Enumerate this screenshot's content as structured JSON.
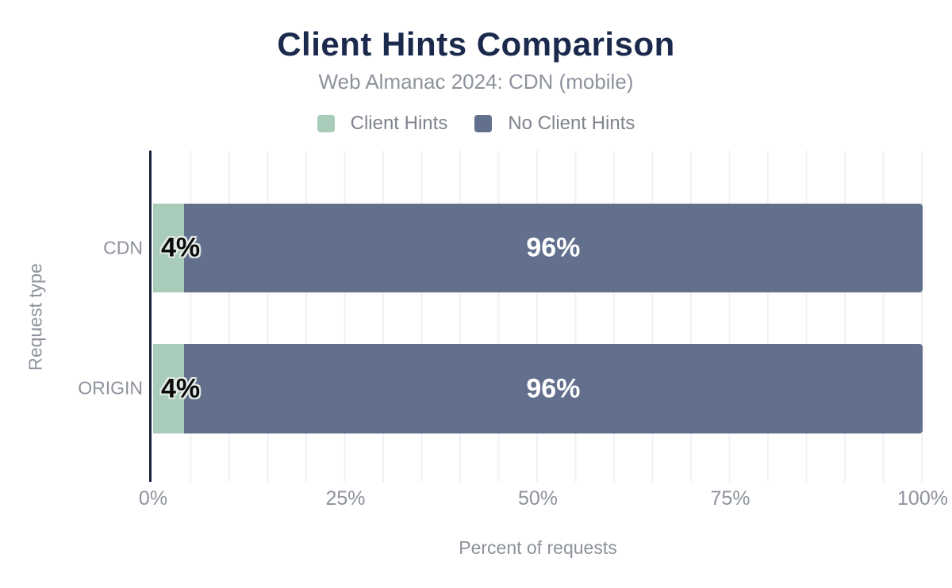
{
  "colors": {
    "title": "#1b2a4c",
    "muted_text": "#8d929c",
    "legend_text": "#7e838d",
    "axis_line": "#16233f",
    "gridline": "#f1f1f3",
    "client_hints": "#a9cbb9",
    "no_client_hints": "#62708e",
    "bar_label_dark": "#0b0b0b",
    "bar_label_light": "#ffffff"
  },
  "header": {
    "title": "Client Hints Comparison",
    "subtitle": "Web Almanac 2024: CDN (mobile)"
  },
  "legend": {
    "items": [
      {
        "label": "Client Hints",
        "color": "#a9cbb9"
      },
      {
        "label": "No Client Hints",
        "color": "#62708e"
      }
    ]
  },
  "axes": {
    "x_label": "Percent of requests",
    "y_label": "Request type",
    "x_ticks": [
      "0%",
      "25%",
      "50%",
      "75%",
      "100%"
    ],
    "x_tick_positions": [
      0,
      25,
      50,
      75,
      100
    ]
  },
  "chart_data": {
    "type": "bar",
    "orientation": "horizontal",
    "stacked": true,
    "title": "Client Hints Comparison",
    "subtitle": "Web Almanac 2024: CDN (mobile)",
    "categories": [
      "CDN",
      "ORIGIN"
    ],
    "series": [
      {
        "name": "Client Hints",
        "color": "#a9cbb9",
        "values": [
          4,
          4
        ],
        "labels": [
          "4%",
          "4%"
        ]
      },
      {
        "name": "No Client Hints",
        "color": "#62708e",
        "values": [
          96,
          96
        ],
        "labels": [
          "96%",
          "96%"
        ]
      }
    ],
    "xlabel": "Percent of requests",
    "ylabel": "Request type",
    "xlim": [
      0,
      100
    ],
    "xticks": [
      0,
      25,
      50,
      75,
      100
    ],
    "grid": {
      "vertical_interval_percent": 5
    },
    "legend_position": "top"
  }
}
